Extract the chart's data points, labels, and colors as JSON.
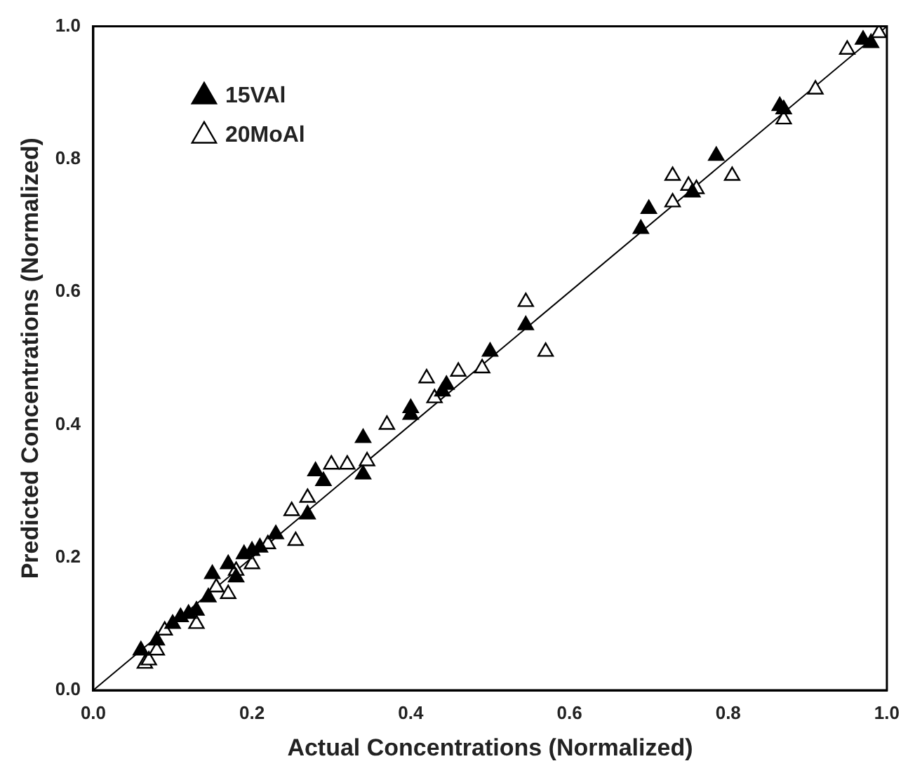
{
  "chart_data": {
    "type": "scatter",
    "xlabel": "Actual Concentrations (Normalized)",
    "ylabel": "Predicted Concentrations (Normalized)",
    "xlim": [
      0,
      1
    ],
    "ylim": [
      0,
      1
    ],
    "xticks": [
      {
        "value": 0,
        "label": "0.0"
      },
      {
        "value": 0.2,
        "label": "0.2"
      },
      {
        "value": 0.4,
        "label": "0.4"
      },
      {
        "value": 0.6,
        "label": "0.6"
      },
      {
        "value": 0.8,
        "label": "0.8"
      },
      {
        "value": 1,
        "label": "1.0"
      }
    ],
    "yticks": [
      {
        "value": 0,
        "label": "0.0"
      },
      {
        "value": 0.2,
        "label": "0.2"
      },
      {
        "value": 0.4,
        "label": "0.4"
      },
      {
        "value": 0.6,
        "label": "0.6"
      },
      {
        "value": 0.8,
        "label": "0.8"
      },
      {
        "value": 1,
        "label": "1.0"
      }
    ],
    "grid": false,
    "legend": "top left",
    "marker": "triangle",
    "series": [
      {
        "name": "15VAl",
        "color": "#000000",
        "x": [
          0.06,
          0.08,
          0.1,
          0.11,
          0.12,
          0.13,
          0.145,
          0.15,
          0.17,
          0.18,
          0.19,
          0.2,
          0.21,
          0.23,
          0.27,
          0.28,
          0.29,
          0.34,
          0.34,
          0.4,
          0.4,
          0.44,
          0.445,
          0.5,
          0.545,
          0.69,
          0.7,
          0.755,
          0.785,
          0.865,
          0.87,
          0.97,
          0.98
        ],
        "values": [
          0.06,
          0.075,
          0.1,
          0.11,
          0.115,
          0.12,
          0.14,
          0.175,
          0.19,
          0.17,
          0.205,
          0.21,
          0.215,
          0.235,
          0.265,
          0.33,
          0.315,
          0.38,
          0.325,
          0.415,
          0.425,
          0.45,
          0.46,
          0.51,
          0.55,
          0.695,
          0.725,
          0.75,
          0.805,
          0.88,
          0.875,
          0.98,
          0.975
        ]
      },
      {
        "name": "20MoAl",
        "color": "#ffffff",
        "x": [
          0.065,
          0.07,
          0.08,
          0.09,
          0.11,
          0.13,
          0.155,
          0.17,
          0.18,
          0.2,
          0.22,
          0.25,
          0.255,
          0.27,
          0.3,
          0.32,
          0.345,
          0.37,
          0.42,
          0.43,
          0.44,
          0.46,
          0.49,
          0.545,
          0.57,
          0.73,
          0.73,
          0.75,
          0.76,
          0.805,
          0.87,
          0.91,
          0.95,
          0.97,
          0.99
        ],
        "values": [
          0.04,
          0.045,
          0.06,
          0.09,
          null,
          0.1,
          0.155,
          0.145,
          0.18,
          0.19,
          0.22,
          0.27,
          0.225,
          0.29,
          0.34,
          0.34,
          0.345,
          0.4,
          0.47,
          0.44,
          null,
          0.48,
          0.485,
          0.585,
          0.51,
          0.775,
          0.735,
          0.76,
          0.755,
          0.775,
          0.86,
          0.905,
          0.965,
          null,
          0.99
        ]
      },
      {
        "type": "line",
        "color": "#000000",
        "x": [
          0,
          1
        ],
        "values": [
          0,
          1
        ],
        "marker": "none"
      }
    ]
  }
}
